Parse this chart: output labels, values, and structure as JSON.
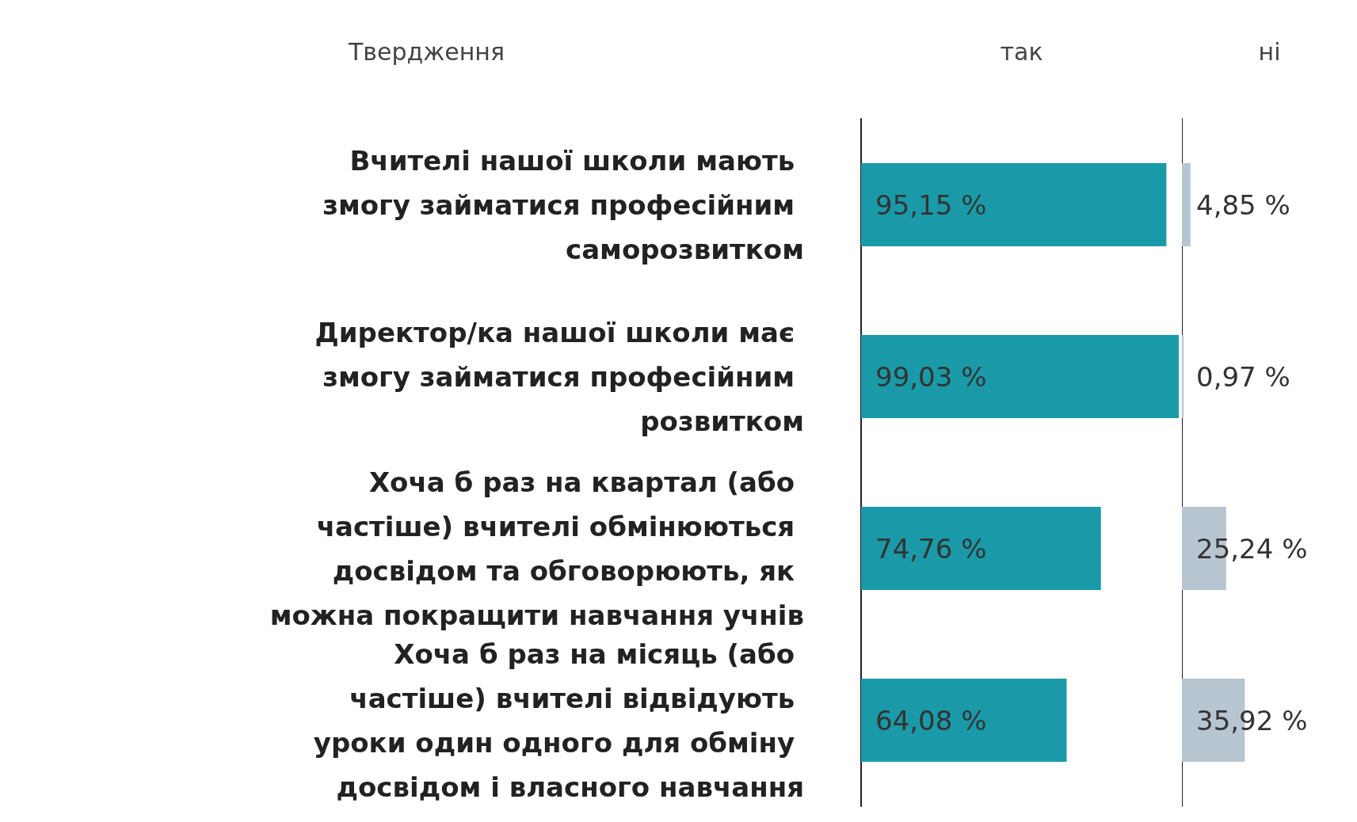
{
  "chart_data": [
    {
      "type": "bar",
      "orientation": "horizontal",
      "ylabel": "Твердження",
      "categories": [
        "Вчителі нашої школи мають змогу займатися професійним саморозвитком",
        "Директор/ка нашої школи має змогу займатися професійним розвитком",
        "Хоча б раз на квартал (або частіше) вчителі обмінюються досвідом та обговорюють, як можна покращити навчання учнів",
        "Хоча б раз на місяць (або частіше) вчителі відвідують уроки один одного для обміну досвідом і власного навчання"
      ],
      "series": [
        {
          "name": "так",
          "color": "#1a9aa8",
          "values": [
            95.15,
            99.03,
            74.76,
            64.08
          ],
          "value_labels": [
            "95,15 %",
            "99,03 %",
            "74,76 %",
            "64,08 %"
          ]
        }
      ]
    },
    {
      "type": "bar",
      "orientation": "horizontal",
      "tick_labels": false,
      "categories": [
        null,
        null,
        null,
        null
      ],
      "series": [
        {
          "name": "ні",
          "color": "#b7c5d1",
          "values": [
            4.85,
            0.97,
            25.24,
            35.92
          ],
          "value_labels": [
            "4,85 %",
            "0,97 %",
            "25,24 %",
            "35,92 %"
          ]
        }
      ]
    }
  ]
}
